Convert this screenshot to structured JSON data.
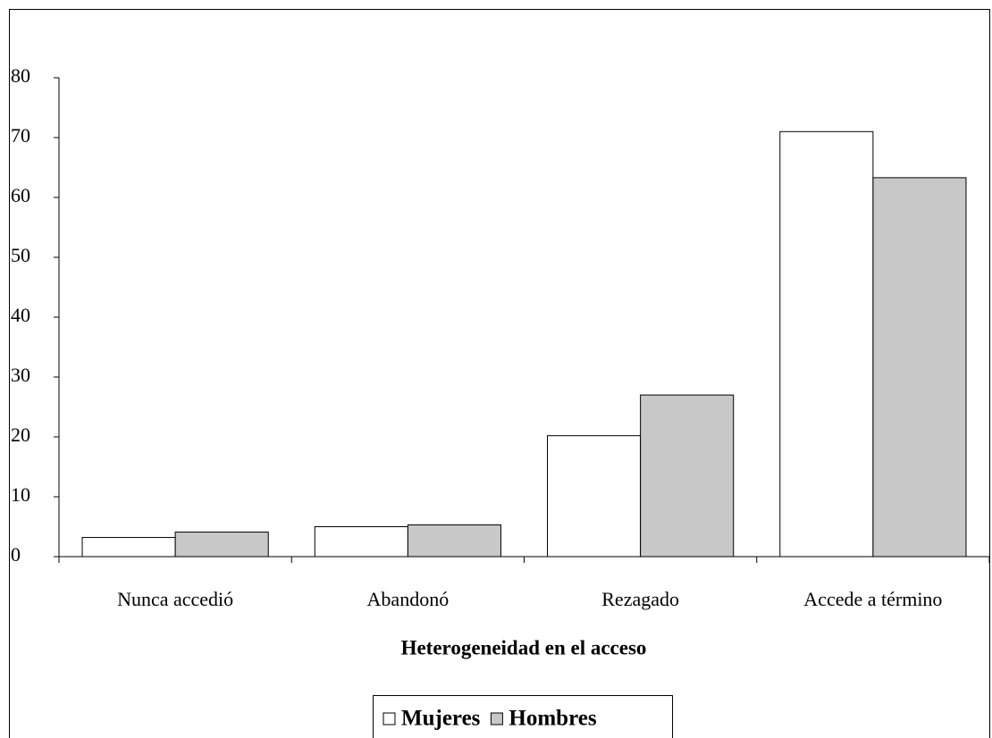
{
  "chart_data": {
    "type": "bar",
    "x_label": "Heterogeneidad en el acceso",
    "categories": [
      "Nunca accedió",
      "Abandonó",
      "Rezagado",
      "Accede a término"
    ],
    "series": [
      {
        "name": "Mujeres",
        "color": "#ffffff",
        "values": [
          3.2,
          5,
          20.2,
          71
        ]
      },
      {
        "name": "Hombres",
        "color": "#c8c8c8",
        "values": [
          4.1,
          5.3,
          27,
          63.3
        ]
      }
    ],
    "ylim": [
      0,
      80
    ],
    "yticks": [
      0,
      10,
      20,
      30,
      40,
      50,
      60,
      70,
      80
    ],
    "legend": "bottom"
  }
}
